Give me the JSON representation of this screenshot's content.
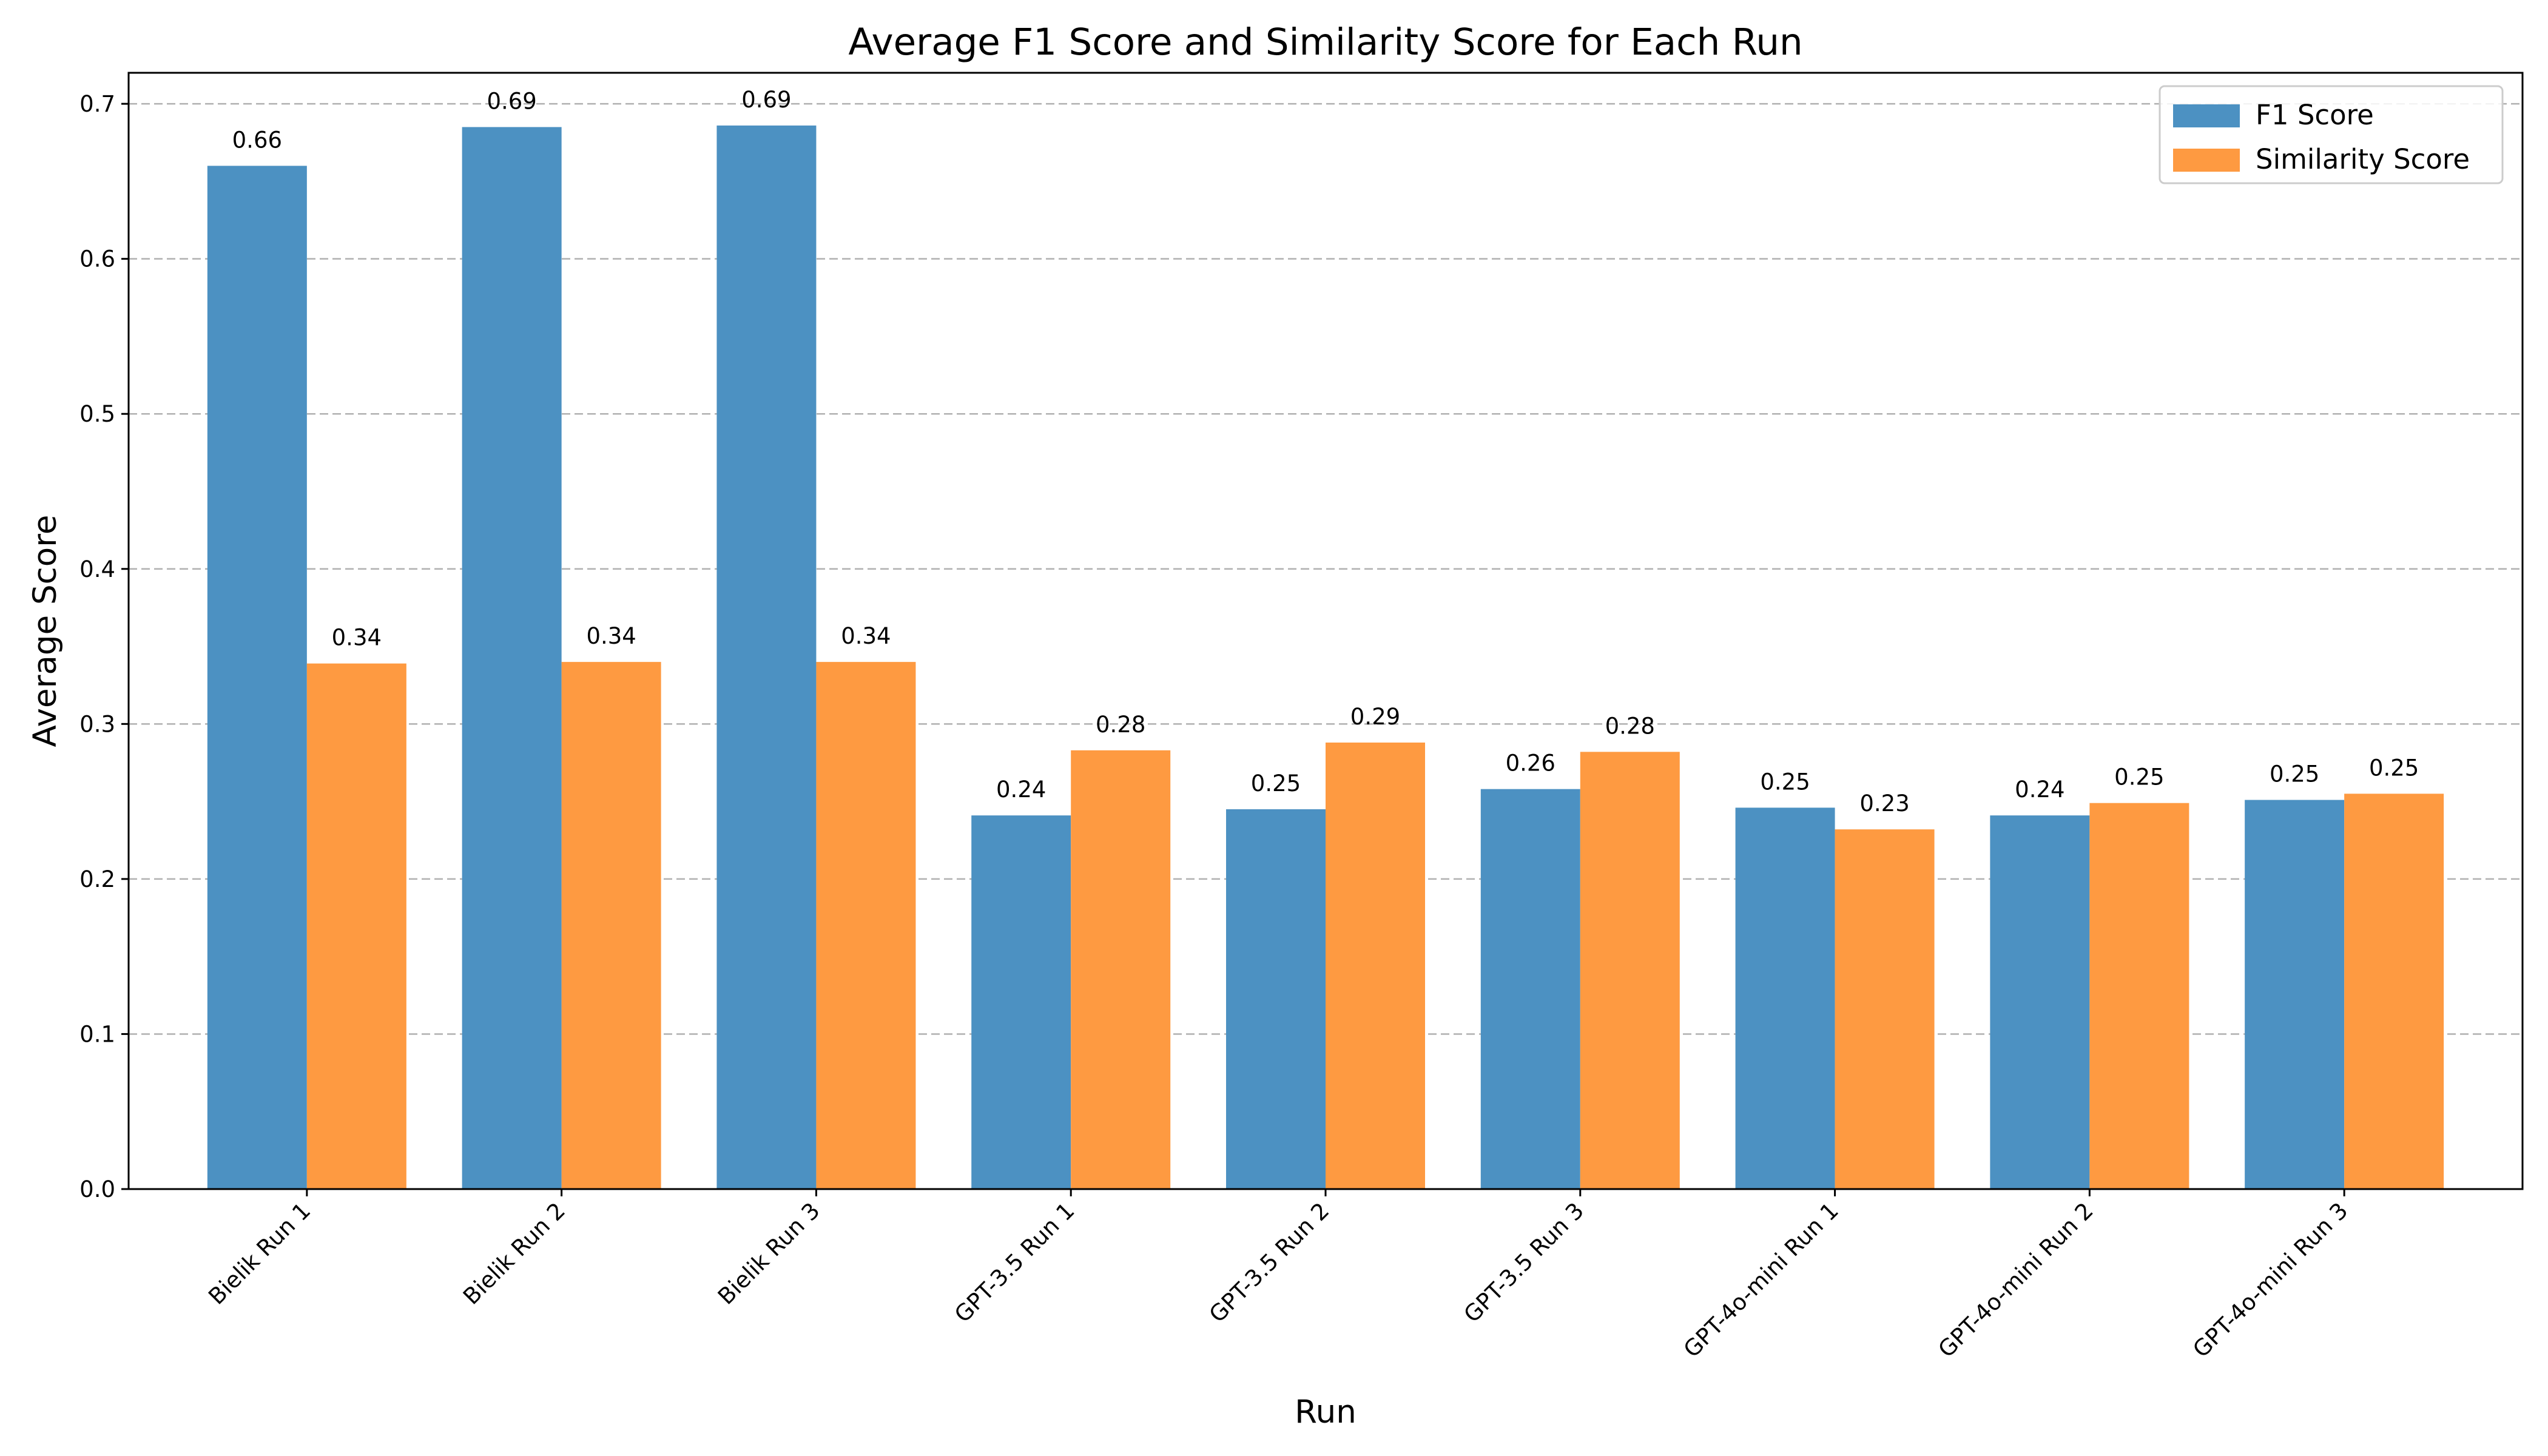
{
  "chart_data": {
    "type": "bar",
    "title": "Average F1 Score and Similarity Score for Each Run",
    "xlabel": "Run",
    "ylabel": "Average Score",
    "ylim": [
      0,
      0.72
    ],
    "yticks": [
      "0.0",
      "0.1",
      "0.2",
      "0.3",
      "0.4",
      "0.5",
      "0.6",
      "0.7"
    ],
    "grid": "horizontal dashed",
    "legend_position": "top-right",
    "categories": [
      "Bielik Run 1",
      "Bielik Run 2",
      "Bielik Run 3",
      "GPT-3.5 Run 1",
      "GPT-3.5 Run 2",
      "GPT-3.5 Run 3",
      "GPT-4o-mini Run 1",
      "GPT-4o-mini Run 2",
      "GPT-4o-mini Run 3"
    ],
    "series": [
      {
        "name": "F1 Score",
        "color": "#4c91c2",
        "values": [
          0.66,
          0.685,
          0.686,
          0.241,
          0.245,
          0.258,
          0.246,
          0.241,
          0.251
        ],
        "labels": [
          "0.66",
          "0.69",
          "0.69",
          "0.24",
          "0.25",
          "0.26",
          "0.25",
          "0.24",
          "0.25"
        ]
      },
      {
        "name": "Similarity Score",
        "color": "#fe9a41",
        "values": [
          0.339,
          0.34,
          0.34,
          0.283,
          0.288,
          0.282,
          0.232,
          0.249,
          0.255
        ],
        "labels": [
          "0.34",
          "0.34",
          "0.34",
          "0.28",
          "0.29",
          "0.28",
          "0.23",
          "0.25",
          "0.25"
        ]
      }
    ]
  }
}
